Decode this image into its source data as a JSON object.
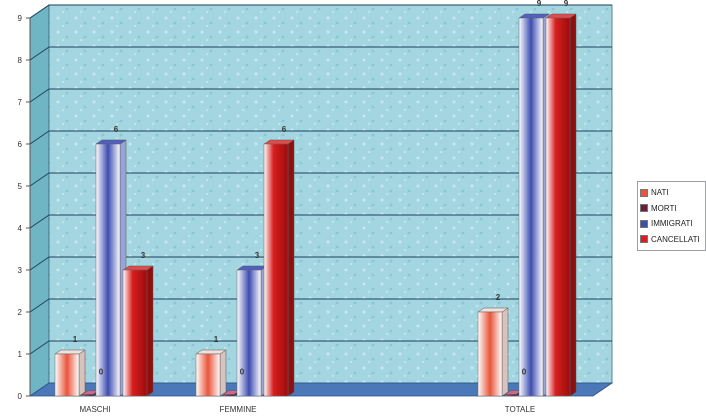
{
  "chart_data": {
    "type": "bar",
    "title": "",
    "xlabel": "",
    "ylabel": "",
    "categories": [
      "MASCHI",
      "FEMMINE",
      "TOTALE"
    ],
    "series": [
      {
        "name": "NATI",
        "values": [
          1,
          1,
          2
        ],
        "labels": [
          "1",
          "1",
          "2"
        ],
        "color": "#e8553a"
      },
      {
        "name": "MORTI",
        "values": [
          0,
          0,
          0
        ],
        "labels": [
          "0",
          "0",
          "0"
        ],
        "color": "#6b1d3d"
      },
      {
        "name": "IMMIGRATI",
        "values": [
          6,
          3,
          9
        ],
        "labels": [
          "6",
          "3",
          "9"
        ],
        "color": "#3d4db0"
      },
      {
        "name": "CANCELLATI",
        "values": [
          3,
          6,
          9
        ],
        "labels": [
          "3",
          "6",
          "9"
        ],
        "color": "#d81e1e"
      }
    ],
    "ylim": [
      0,
      9
    ],
    "yticks": [
      "0",
      "1",
      "2",
      "3",
      "4",
      "5",
      "6",
      "7",
      "8",
      "9"
    ],
    "grid": true,
    "legend_position": "right"
  },
  "style": {
    "wall_color": "#9fd3dd",
    "floor_color": "#4a78b8",
    "grid_color": "#1e3f5a"
  }
}
